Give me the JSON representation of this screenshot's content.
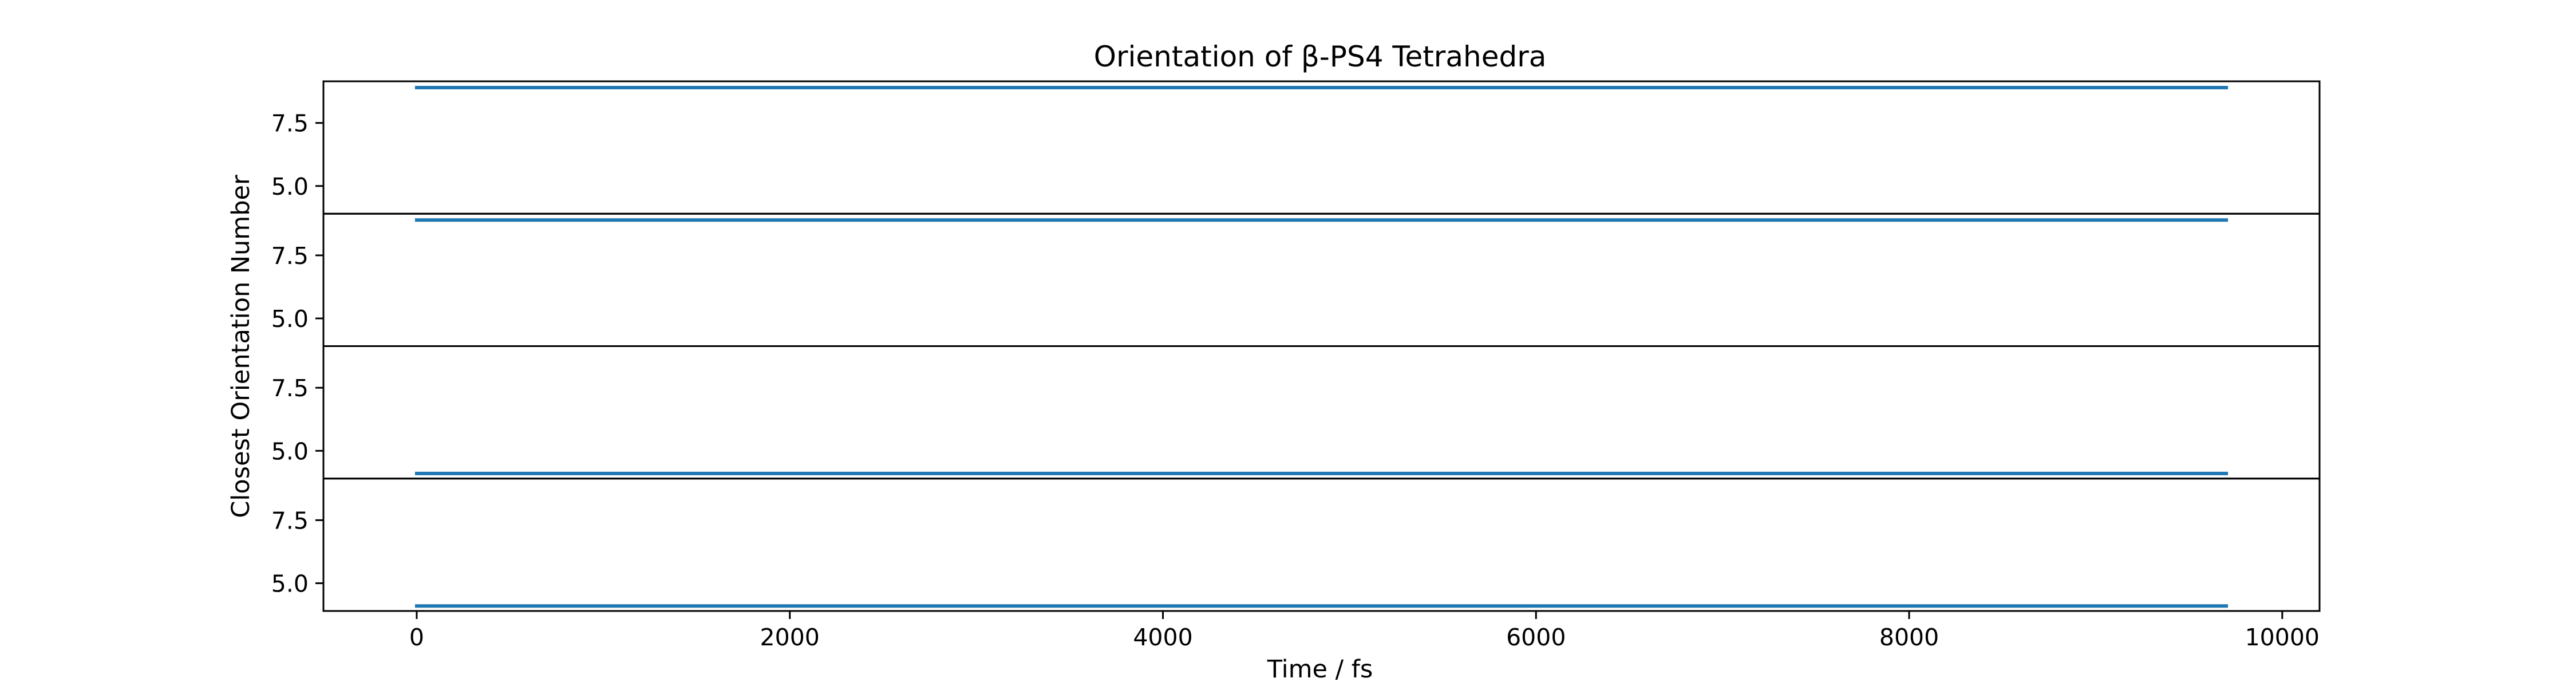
{
  "chart_data": {
    "type": "line",
    "title": "Orientation of β-PS4 Tetrahedra",
    "xlabel": "Time / fs",
    "ylabel": "Closest Orientation Number",
    "xlim": [
      -500,
      10200
    ],
    "x_ticks": [
      0,
      2000,
      4000,
      6000,
      8000,
      10000
    ],
    "x_tick_labels": [
      "0",
      "2000",
      "4000",
      "6000",
      "8000",
      "10000"
    ],
    "subplot_ylim": [
      3.9,
      9.15
    ],
    "y_ticks": [
      5.0,
      7.5
    ],
    "y_tick_labels": [
      "5.0",
      "7.5"
    ],
    "line_color": "#1f77b4",
    "grid": false,
    "series": [
      {
        "x": [
          0,
          9700
        ],
        "values": [
          8.9,
          8.9
        ]
      },
      {
        "x": [
          0,
          9700
        ],
        "values": [
          8.9,
          8.9
        ]
      },
      {
        "x": [
          0,
          9700
        ],
        "values": [
          4.1,
          4.1
        ]
      },
      {
        "x": [
          0,
          9700
        ],
        "values": [
          4.1,
          4.1
        ]
      }
    ]
  }
}
